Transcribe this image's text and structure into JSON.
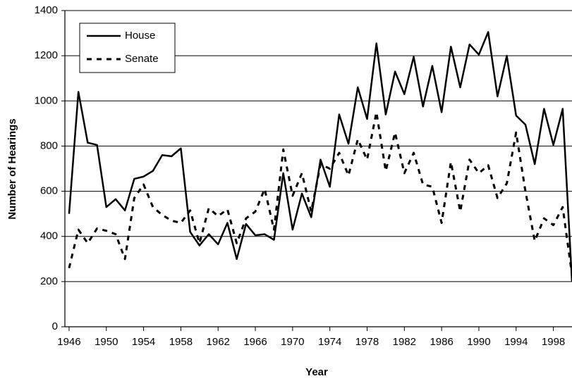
{
  "chart_data": {
    "type": "line",
    "x_label": "Year",
    "y_label": "Number of Hearings",
    "x": [
      1946,
      1947,
      1948,
      1949,
      1950,
      1951,
      1952,
      1953,
      1954,
      1955,
      1956,
      1957,
      1958,
      1959,
      1960,
      1961,
      1962,
      1963,
      1964,
      1965,
      1966,
      1967,
      1968,
      1969,
      1970,
      1971,
      1972,
      1973,
      1974,
      1975,
      1976,
      1977,
      1978,
      1979,
      1980,
      1981,
      1982,
      1983,
      1984,
      1985,
      1986,
      1987,
      1988,
      1989,
      1990,
      1991,
      1992,
      1993,
      1994,
      1995,
      1996,
      1997,
      1998,
      1999,
      2000
    ],
    "series": [
      {
        "name": "House",
        "color": "#000000",
        "dash": false,
        "values": [
          500,
          1040,
          815,
          805,
          530,
          565,
          515,
          655,
          665,
          690,
          760,
          755,
          790,
          420,
          360,
          410,
          365,
          460,
          300,
          455,
          405,
          410,
          385,
          680,
          430,
          590,
          485,
          740,
          620,
          940,
          810,
          1060,
          920,
          1255,
          940,
          1130,
          1030,
          1195,
          975,
          1155,
          950,
          1240,
          1060,
          1250,
          1205,
          1305,
          1020,
          1200,
          935,
          895,
          720,
          965,
          805,
          965,
          200
        ]
      },
      {
        "name": "Senate",
        "color": "#000000",
        "dash": true,
        "values": [
          260,
          430,
          370,
          435,
          425,
          410,
          300,
          570,
          630,
          530,
          495,
          470,
          460,
          515,
          370,
          525,
          490,
          520,
          370,
          480,
          510,
          610,
          430,
          785,
          580,
          680,
          510,
          720,
          700,
          770,
          670,
          830,
          740,
          950,
          690,
          860,
          680,
          770,
          630,
          620,
          460,
          730,
          510,
          740,
          680,
          715,
          570,
          635,
          860,
          600,
          380,
          480,
          450,
          530,
          230
        ]
      }
    ],
    "xlim": [
      1945.55,
      2000
    ],
    "xticks": [
      1946,
      1950,
      1954,
      1958,
      1962,
      1966,
      1970,
      1974,
      1978,
      1982,
      1986,
      1990,
      1994,
      1998
    ],
    "ylim": [
      0,
      1400
    ],
    "yticks": [
      0,
      200,
      400,
      600,
      800,
      1000,
      1200,
      1400
    ],
    "grid": true,
    "legend": "top-left"
  }
}
